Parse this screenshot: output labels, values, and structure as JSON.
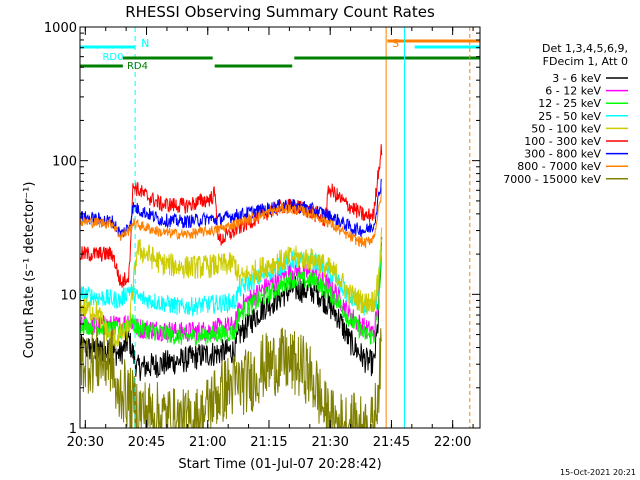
{
  "chart_data": {
    "type": "line",
    "title": "RHESSI Observing Summary Count Rates",
    "xlabel": "Start Time (01-Jul-07 20:28:42)",
    "ylabel": "Count Rate (s⁻¹ detector⁻¹)",
    "yscale": "log",
    "ylim": [
      1,
      1000
    ],
    "x_unit": "minutes after 20:28:42",
    "xlim": [
      0,
      98
    ],
    "x_ticks": [
      "20:30",
      "20:45",
      "21:00",
      "21:15",
      "21:30",
      "21:45",
      "22:00"
    ],
    "x_tick_positions": [
      1.3,
      16.3,
      31.3,
      46.3,
      61.3,
      76.3,
      91.3
    ],
    "y_ticks": [
      "1",
      "10",
      "100",
      "1000"
    ],
    "y_tick_values": [
      1,
      10,
      100,
      1000
    ],
    "grid": false,
    "legend_placement": "right",
    "legend_header": [
      "Det 1,3,4,5,6,9,",
      "FDecim 1, Att 0"
    ],
    "timestamp": "15-Oct-2021 20:21",
    "colors": {
      "background": "#ffffff",
      "axes": "#000000"
    },
    "series": [
      {
        "name": "3 - 6 keV",
        "color": "#000000",
        "noise": 0.1,
        "points": [
          [
            0,
            4.0
          ],
          [
            10,
            3.6
          ],
          [
            12,
            4.6
          ],
          [
            14,
            2.8
          ],
          [
            25,
            3.2
          ],
          [
            30,
            3.5
          ],
          [
            38,
            3.8
          ],
          [
            39,
            5.0
          ],
          [
            45,
            8.0
          ],
          [
            52,
            11.0
          ],
          [
            58,
            10.5
          ],
          [
            63,
            7.0
          ],
          [
            66,
            4.5
          ],
          [
            70,
            3.2
          ],
          [
            72,
            3.0
          ],
          [
            73,
            6.0
          ],
          [
            74,
            25
          ]
        ]
      },
      {
        "name": "6 - 12 keV",
        "color": "#ff00ff",
        "noise": 0.08,
        "points": [
          [
            0,
            6.0
          ],
          [
            10,
            5.8
          ],
          [
            12,
            6.5
          ],
          [
            14,
            5.6
          ],
          [
            25,
            5.2
          ],
          [
            30,
            5.3
          ],
          [
            38,
            5.8
          ],
          [
            39,
            8.0
          ],
          [
            45,
            11.0
          ],
          [
            52,
            15.0
          ],
          [
            58,
            14.0
          ],
          [
            63,
            10.0
          ],
          [
            66,
            7.0
          ],
          [
            70,
            5.5
          ],
          [
            72,
            5.2
          ],
          [
            73,
            8.0
          ],
          [
            74,
            30
          ]
        ]
      },
      {
        "name": "12 - 25 keV",
        "color": "#00ff00",
        "noise": 0.07,
        "points": [
          [
            0,
            6.0
          ],
          [
            10,
            5.3
          ],
          [
            12,
            6.5
          ],
          [
            14,
            5.6
          ],
          [
            25,
            4.8
          ],
          [
            30,
            4.9
          ],
          [
            38,
            5.2
          ],
          [
            39,
            7.2
          ],
          [
            45,
            9.5
          ],
          [
            52,
            13.0
          ],
          [
            58,
            12.5
          ],
          [
            63,
            9.0
          ],
          [
            66,
            6.5
          ],
          [
            70,
            5.0
          ],
          [
            72,
            4.8
          ],
          [
            73,
            7.0
          ],
          [
            74,
            25
          ]
        ]
      },
      {
        "name": "25 - 50 keV",
        "color": "#00ffff",
        "noise": 0.07,
        "points": [
          [
            0,
            10.0
          ],
          [
            10,
            9.0
          ],
          [
            12,
            11.0
          ],
          [
            14,
            9.5
          ],
          [
            25,
            8.0
          ],
          [
            30,
            8.3
          ],
          [
            38,
            8.8
          ],
          [
            39,
            11.0
          ],
          [
            45,
            14.0
          ],
          [
            52,
            18.0
          ],
          [
            58,
            17.5
          ],
          [
            63,
            12.5
          ],
          [
            66,
            9.5
          ],
          [
            70,
            8.0
          ],
          [
            72,
            7.8
          ],
          [
            73,
            10.0
          ],
          [
            74,
            30
          ]
        ]
      },
      {
        "name": "50 - 100 keV",
        "color": "#cccc00",
        "noise": 0.09,
        "points": [
          [
            0,
            8.0
          ],
          [
            4,
            7.5
          ],
          [
            8,
            4.5
          ],
          [
            12,
            5.5
          ],
          [
            14,
            22
          ],
          [
            20,
            17
          ],
          [
            25,
            16
          ],
          [
            30,
            16
          ],
          [
            38,
            17
          ],
          [
            39,
            13
          ],
          [
            45,
            16
          ],
          [
            52,
            19
          ],
          [
            58,
            18
          ],
          [
            63,
            14
          ],
          [
            66,
            10
          ],
          [
            70,
            8.5
          ],
          [
            72,
            9
          ],
          [
            73,
            12
          ],
          [
            74,
            30
          ]
        ]
      },
      {
        "name": "100 - 300 keV",
        "color": "#ff0000",
        "noise": 0.06,
        "points": [
          [
            0,
            20
          ],
          [
            8,
            20
          ],
          [
            10,
            12
          ],
          [
            12,
            14
          ],
          [
            13,
            65
          ],
          [
            16,
            55
          ],
          [
            20,
            47
          ],
          [
            26,
            46
          ],
          [
            32,
            52
          ],
          [
            33,
            57
          ],
          [
            34,
            25
          ],
          [
            40,
            33
          ],
          [
            45,
            40
          ],
          [
            50,
            46
          ],
          [
            55,
            44
          ],
          [
            60,
            36
          ],
          [
            61,
            62
          ],
          [
            65,
            48
          ],
          [
            70,
            38
          ],
          [
            72,
            40
          ],
          [
            73,
            80
          ],
          [
            74,
            130
          ]
        ]
      },
      {
        "name": "300 - 800 keV",
        "color": "#0000ff",
        "noise": 0.05,
        "points": [
          [
            0,
            38
          ],
          [
            8,
            35
          ],
          [
            10,
            28
          ],
          [
            12,
            32
          ],
          [
            13,
            45
          ],
          [
            20,
            36
          ],
          [
            26,
            35
          ],
          [
            32,
            37
          ],
          [
            33,
            36
          ],
          [
            40,
            40
          ],
          [
            45,
            43
          ],
          [
            50,
            47
          ],
          [
            55,
            45
          ],
          [
            60,
            40
          ],
          [
            63,
            36
          ],
          [
            67,
            31
          ],
          [
            70,
            30
          ],
          [
            72,
            33
          ],
          [
            73,
            50
          ],
          [
            74,
            75
          ]
        ]
      },
      {
        "name": "800 - 7000 keV",
        "color": "#ff8000",
        "noise": 0.04,
        "points": [
          [
            0,
            35
          ],
          [
            8,
            34
          ],
          [
            10,
            27
          ],
          [
            12,
            30
          ],
          [
            13,
            34
          ],
          [
            20,
            29
          ],
          [
            26,
            28
          ],
          [
            32,
            30
          ],
          [
            33,
            30
          ],
          [
            40,
            35
          ],
          [
            45,
            40
          ],
          [
            50,
            44
          ],
          [
            55,
            42
          ],
          [
            60,
            36
          ],
          [
            63,
            31
          ],
          [
            67,
            26
          ],
          [
            70,
            24
          ],
          [
            72,
            27
          ],
          [
            73,
            40
          ],
          [
            74,
            60
          ]
        ]
      },
      {
        "name": "7000 - 15000 keV",
        "color": "#808000",
        "noise": 0.25,
        "points": [
          [
            0,
            3.2
          ],
          [
            8,
            3.2
          ],
          [
            9,
            1.5
          ],
          [
            10,
            2.0
          ],
          [
            14,
            1.4
          ],
          [
            25,
            1.1
          ],
          [
            30,
            1.2
          ],
          [
            32,
            1.6
          ],
          [
            36,
            2.0
          ],
          [
            42,
            2.3
          ],
          [
            45,
            2.9
          ],
          [
            50,
            3.2
          ],
          [
            55,
            2.8
          ],
          [
            58,
            2.0
          ],
          [
            60,
            1.3
          ],
          [
            62,
            1.1
          ],
          [
            70,
            1.0
          ],
          [
            72,
            1.0
          ],
          [
            74,
            4.0
          ]
        ]
      }
    ],
    "markers": [
      {
        "label": "N",
        "color": "#00ffff",
        "line_color": "#00ffff",
        "dashed": true,
        "x": 13.5
      },
      {
        "label": "S",
        "color": "#ff8000",
        "line_color": "#ff8000",
        "dashed": false,
        "x": 75.0
      }
    ],
    "attenuator_levels": [
      {
        "label": "RD0",
        "color": "#00ffff"
      },
      {
        "label": "RD4",
        "color": "#008000"
      }
    ]
  }
}
